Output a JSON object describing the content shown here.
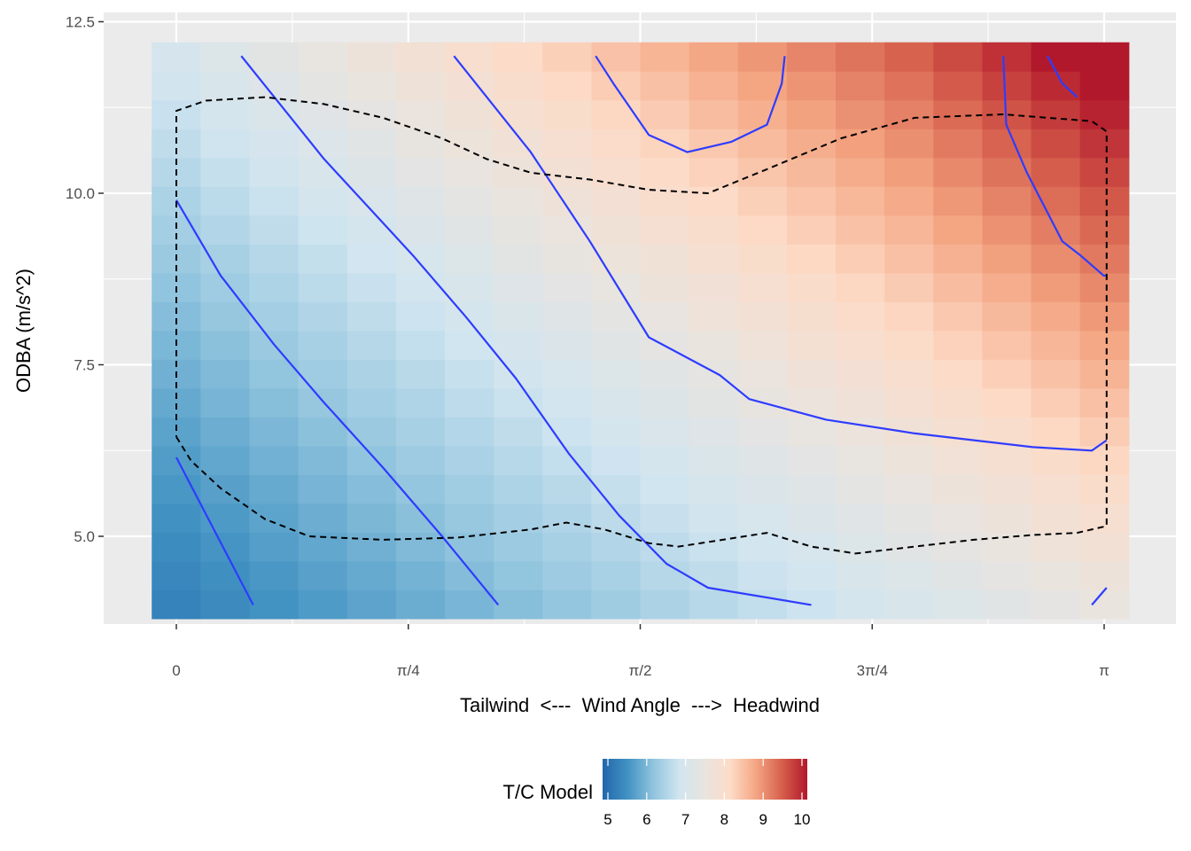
{
  "chart_data": {
    "type": "heatmap",
    "title": "",
    "xlabel": "Tailwind  <---  Wind Angle  --->  Headwind",
    "ylabel": "ODBA (m/s^2)",
    "xlim": [
      -0.1,
      3.27
    ],
    "ylim": [
      3.75,
      12.6
    ],
    "x_ticks": [
      {
        "value": 0,
        "label": "0"
      },
      {
        "value": 0.7854,
        "label": "π/4"
      },
      {
        "value": 1.5708,
        "label": "π/2"
      },
      {
        "value": 2.3562,
        "label": "3π/4"
      },
      {
        "value": 3.1416,
        "label": "π"
      }
    ],
    "y_ticks": [
      {
        "value": 5.0,
        "label": "5.0"
      },
      {
        "value": 7.5,
        "label": "7.5"
      },
      {
        "value": 10.0,
        "label": "10.0"
      },
      {
        "value": 12.5,
        "label": "12.5"
      }
    ],
    "grid": true,
    "heatmap": {
      "x_range": [
        -0.0833,
        3.225
      ],
      "y_range": [
        3.8,
        12.2
      ],
      "nx": 20,
      "ny": 20,
      "value_range": [
        5,
        10
      ]
    },
    "contour_levels": [
      {
        "level": "low",
        "lines": [
          [
            [
              0.0,
              6.15
            ],
            [
              0.26,
              4.0
            ]
          ]
        ]
      },
      {
        "level": "mid-low",
        "lines": [
          [
            [
              0.0,
              9.9
            ],
            [
              0.15,
              8.8
            ],
            [
              0.33,
              7.8
            ],
            [
              0.5,
              6.95
            ],
            [
              0.7,
              6.0
            ],
            [
              0.9,
              5.0
            ],
            [
              1.09,
              4.0
            ]
          ]
        ]
      },
      {
        "level": "mid",
        "lines": [
          [
            [
              0.22,
              12.0
            ],
            [
              0.5,
              10.5
            ],
            [
              0.8,
              9.1
            ],
            [
              0.98,
              8.2
            ],
            [
              1.15,
              7.3
            ],
            [
              1.33,
              6.2
            ],
            [
              1.5,
              5.3
            ],
            [
              1.66,
              4.6
            ],
            [
              1.8,
              4.25
            ],
            [
              2.15,
              4.0
            ]
          ]
        ]
      },
      {
        "level": "mid-high",
        "lines": [
          [
            [
              0.94,
              12.0
            ],
            [
              1.2,
              10.6
            ],
            [
              1.4,
              9.3
            ],
            [
              1.6,
              7.9
            ],
            [
              1.84,
              7.35
            ],
            [
              1.94,
              7.0
            ],
            [
              2.2,
              6.7
            ],
            [
              2.5,
              6.5
            ],
            [
              2.9,
              6.3
            ],
            [
              3.1,
              6.25
            ],
            [
              3.15,
              6.4
            ]
          ]
        ]
      },
      {
        "level": "mid-high",
        "lines": [
          [
            [
              3.1,
              4.0
            ],
            [
              3.15,
              4.25
            ]
          ]
        ]
      },
      {
        "level": "high",
        "lines": [
          [
            [
              1.42,
              12.0
            ],
            [
              1.48,
              11.6
            ],
            [
              1.6,
              10.85
            ],
            [
              1.73,
              10.6
            ],
            [
              1.88,
              10.75
            ],
            [
              2.0,
              11.0
            ],
            [
              2.05,
              11.6
            ],
            [
              2.06,
              12.0
            ]
          ],
          [
            [
              2.8,
              12.0
            ],
            [
              2.81,
              11.0
            ],
            [
              2.88,
              10.3
            ],
            [
              3.0,
              9.3
            ],
            [
              3.06,
              9.1
            ],
            [
              3.14,
              8.8
            ],
            [
              3.15,
              8.8
            ]
          ],
          [
            [
              2.95,
              12.0
            ],
            [
              3.0,
              11.6
            ],
            [
              3.05,
              11.4
            ]
          ]
        ]
      }
    ],
    "convex_hull_dashed": [
      [
        0.0,
        6.45
      ],
      [
        0.05,
        6.1
      ],
      [
        0.15,
        5.7
      ],
      [
        0.3,
        5.25
      ],
      [
        0.45,
        5.0
      ],
      [
        0.7,
        4.95
      ],
      [
        0.95,
        4.98
      ],
      [
        1.2,
        5.1
      ],
      [
        1.32,
        5.2
      ],
      [
        1.45,
        5.1
      ],
      [
        1.6,
        4.9
      ],
      [
        1.7,
        4.85
      ],
      [
        1.85,
        4.95
      ],
      [
        2.0,
        5.05
      ],
      [
        2.15,
        4.85
      ],
      [
        2.3,
        4.75
      ],
      [
        2.5,
        4.85
      ],
      [
        2.7,
        4.95
      ],
      [
        2.9,
        5.02
      ],
      [
        3.05,
        5.05
      ],
      [
        3.15,
        5.15
      ],
      [
        3.15,
        10.9
      ],
      [
        3.1,
        11.05
      ],
      [
        2.8,
        11.15
      ],
      [
        2.5,
        11.1
      ],
      [
        2.25,
        10.8
      ],
      [
        2.0,
        10.35
      ],
      [
        1.8,
        10.0
      ],
      [
        1.6,
        10.05
      ],
      [
        1.4,
        10.2
      ],
      [
        1.2,
        10.3
      ],
      [
        1.05,
        10.5
      ],
      [
        0.9,
        10.8
      ],
      [
        0.7,
        11.1
      ],
      [
        0.5,
        11.3
      ],
      [
        0.3,
        11.4
      ],
      [
        0.1,
        11.35
      ],
      [
        0.0,
        11.2
      ],
      [
        0.0,
        6.45
      ]
    ],
    "legend": {
      "title": "T/C Model",
      "position": "bottom",
      "range": [
        5,
        10
      ],
      "ticks": [
        5,
        6,
        7,
        8,
        9,
        10
      ],
      "tick_labels": [
        "5",
        "6",
        "7",
        "8",
        "9",
        "10"
      ],
      "colors": [
        "#2166ac",
        "#4393c3",
        "#92c5de",
        "#d1e5f0",
        "#f7f7f7",
        "#fddbc7",
        "#f4a582",
        "#d6604d",
        "#b2182b",
        "#b2182b"
      ]
    },
    "panel_background": "#ebebeb",
    "grid_color": "#ffffff",
    "contour_color": "#2e3cff",
    "hull_color": "#000000"
  }
}
